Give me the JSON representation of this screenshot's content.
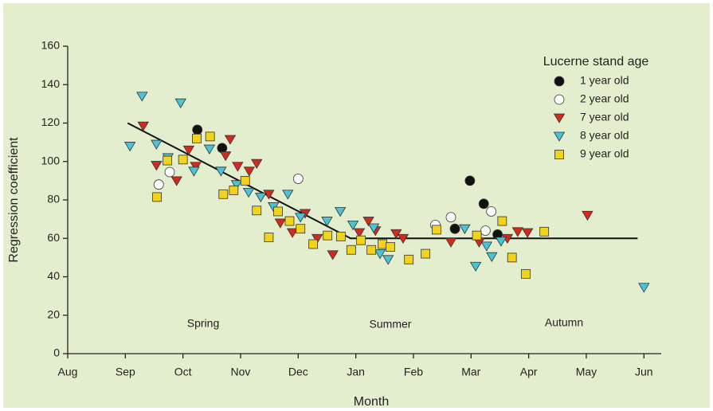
{
  "chart_data": {
    "type": "scatter",
    "x_label": "Month",
    "y_label": "Regression coefficient",
    "legend_title": "Lucerne stand age",
    "legend": "upper right",
    "xlim": [
      0,
      10.3
    ],
    "ylim": [
      0,
      160
    ],
    "xticks": [
      {
        "value": 0,
        "label": "Aug"
      },
      {
        "value": 1,
        "label": "Sep"
      },
      {
        "value": 2,
        "label": "Oct"
      },
      {
        "value": 3,
        "label": "Nov"
      },
      {
        "value": 4,
        "label": "Dec"
      },
      {
        "value": 5,
        "label": "Jan"
      },
      {
        "value": 6,
        "label": "Feb"
      },
      {
        "value": 7,
        "label": "Mar"
      },
      {
        "value": 8,
        "label": "Apr"
      },
      {
        "value": 9,
        "label": "May"
      },
      {
        "value": 10,
        "label": "Jun"
      }
    ],
    "yticks": [
      0,
      20,
      40,
      60,
      80,
      100,
      120,
      140,
      160
    ],
    "annotations": [
      "Spring",
      "Summer",
      "Autumn"
    ],
    "fit_line": {
      "x": [
        1.04,
        4.91,
        9.89
      ],
      "values": [
        120,
        60,
        60
      ],
      "color": "#111111"
    },
    "series": [
      {
        "name": "1 year old",
        "marker": "circle",
        "color": "#111111",
        "x": [
          2.25,
          2.68,
          6.98,
          7.22,
          6.72,
          7.46
        ],
        "values": [
          116.5,
          107,
          90,
          78,
          65,
          62
        ]
      },
      {
        "name": "2 year old",
        "marker": "circle",
        "color": "#ffffff",
        "x": [
          1.58,
          1.77,
          4.0,
          6.38,
          6.65,
          7.25,
          7.35
        ],
        "values": [
          88,
          94.5,
          91,
          67,
          71,
          64,
          74
        ]
      },
      {
        "name": "7 year old",
        "marker": "triangle-down",
        "color": "#d42a1e",
        "x": [
          1.31,
          1.54,
          1.89,
          2.1,
          2.22,
          2.74,
          2.82,
          2.95,
          3.15,
          3.28,
          3.49,
          3.69,
          3.9,
          4.12,
          4.33,
          4.6,
          5.06,
          5.22,
          5.34,
          5.7,
          5.82,
          6.65,
          7.14,
          7.63,
          7.81,
          7.98,
          9.02
        ],
        "values": [
          118.5,
          98,
          90,
          106,
          97.5,
          103,
          111.5,
          97.5,
          95,
          99,
          83,
          68,
          63,
          73,
          60,
          51.5,
          63,
          69,
          64,
          62.5,
          60,
          58,
          58,
          60,
          63.5,
          63,
          72
        ]
      },
      {
        "name": "8 year old",
        "marker": "triangle-down",
        "color": "#4cc3d4",
        "x": [
          1.08,
          1.29,
          1.54,
          1.74,
          1.96,
          2.19,
          2.46,
          2.66,
          2.93,
          3.14,
          3.35,
          3.57,
          3.82,
          4.04,
          4.5,
          4.73,
          4.95,
          5.31,
          5.42,
          5.56,
          6.89,
          7.08,
          7.27,
          7.36,
          7.52,
          10.0
        ],
        "values": [
          108,
          134,
          109,
          102,
          130.5,
          95,
          106.5,
          95,
          88,
          84,
          81.5,
          76.5,
          83,
          71,
          69,
          74,
          67,
          65.5,
          52,
          49,
          65,
          45.5,
          56,
          50.5,
          58.5,
          34.5
        ]
      },
      {
        "name": "9 year old",
        "marker": "square",
        "color": "#f2d31b",
        "x": [
          1.55,
          1.73,
          2.0,
          2.24,
          2.47,
          2.7,
          2.88,
          3.08,
          3.28,
          3.49,
          3.65,
          3.85,
          4.04,
          4.26,
          4.51,
          4.74,
          4.92,
          5.09,
          5.27,
          5.46,
          5.6,
          5.92,
          6.21,
          6.4,
          7.1,
          7.54,
          7.71,
          7.95,
          8.27
        ],
        "values": [
          81.5,
          100.5,
          101,
          112,
          113,
          83,
          85,
          90,
          74.5,
          60.5,
          74,
          69,
          65,
          57,
          61.5,
          61,
          54,
          59,
          54,
          57,
          55.5,
          49,
          52,
          64.5,
          61.5,
          69,
          50,
          41.5,
          63.5
        ]
      }
    ]
  }
}
